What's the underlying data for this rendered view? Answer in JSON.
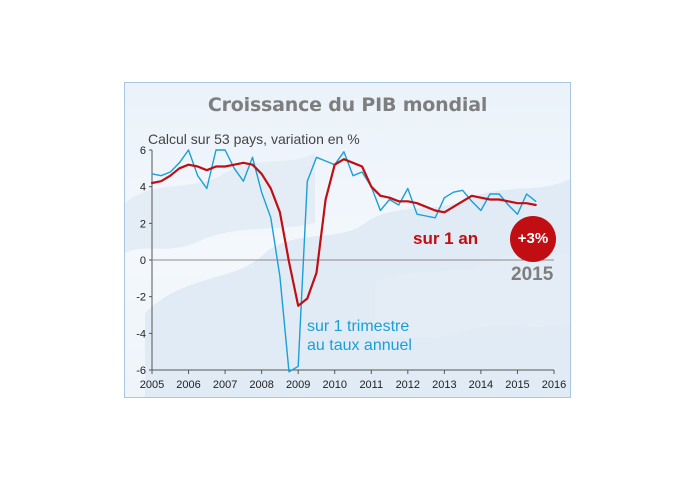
{
  "chart_data": {
    "type": "line",
    "title": "Croissance du PIB mondial",
    "subtitle": "Calcul sur 53 pays, variation en %",
    "xlim": [
      2005,
      2016
    ],
    "ylim": [
      -6,
      6
    ],
    "x_ticks": [
      "2005",
      "2006",
      "2007",
      "2008",
      "2009",
      "2010",
      "2011",
      "2012",
      "2013",
      "2014",
      "2015",
      "2016"
    ],
    "y_ticks": [
      "6",
      "4",
      "2",
      "0",
      "-2",
      "-4",
      "-6"
    ],
    "grid": false,
    "series": [
      {
        "name": "sur 1 an",
        "color": "#c00e12",
        "x": [
          2005.0,
          2005.25,
          2005.5,
          2005.75,
          2006.0,
          2006.25,
          2006.5,
          2006.75,
          2007.0,
          2007.25,
          2007.5,
          2007.75,
          2008.0,
          2008.25,
          2008.5,
          2008.75,
          2009.0,
          2009.25,
          2009.5,
          2009.75,
          2010.0,
          2010.25,
          2010.5,
          2010.75,
          2011.0,
          2011.25,
          2011.5,
          2011.75,
          2012.0,
          2012.25,
          2012.5,
          2012.75,
          2013.0,
          2013.25,
          2013.5,
          2013.75,
          2014.0,
          2014.25,
          2014.5,
          2014.75,
          2015.0,
          2015.25,
          2015.5
        ],
        "values": [
          4.2,
          4.3,
          4.6,
          5.0,
          5.2,
          5.1,
          4.9,
          5.1,
          5.1,
          5.2,
          5.3,
          5.2,
          4.7,
          3.9,
          2.6,
          -0.1,
          -2.5,
          -2.1,
          -0.7,
          3.3,
          5.2,
          5.5,
          5.3,
          5.1,
          4.0,
          3.5,
          3.4,
          3.2,
          3.2,
          3.1,
          2.9,
          2.7,
          2.6,
          2.9,
          3.2,
          3.5,
          3.4,
          3.3,
          3.3,
          3.2,
          3.1,
          3.1,
          3.0
        ]
      },
      {
        "name": "sur 1 trimestre au taux annuel",
        "color": "#1a9fd6",
        "x": [
          2005.0,
          2005.25,
          2005.5,
          2005.75,
          2006.0,
          2006.25,
          2006.5,
          2006.75,
          2007.0,
          2007.25,
          2007.5,
          2007.75,
          2008.0,
          2008.25,
          2008.5,
          2008.75,
          2009.0,
          2009.25,
          2009.5,
          2009.75,
          2010.0,
          2010.25,
          2010.5,
          2010.75,
          2011.0,
          2011.25,
          2011.5,
          2011.75,
          2012.0,
          2012.25,
          2012.5,
          2012.75,
          2013.0,
          2013.25,
          2013.5,
          2013.75,
          2014.0,
          2014.25,
          2014.5,
          2014.75,
          2015.0,
          2015.25,
          2015.5
        ],
        "values": [
          4.7,
          4.6,
          4.8,
          5.3,
          6.0,
          4.6,
          3.9,
          6.0,
          6.0,
          5.0,
          4.3,
          5.6,
          3.7,
          2.3,
          -0.9,
          -6.1,
          -5.8,
          4.3,
          5.6,
          5.4,
          5.2,
          5.9,
          4.6,
          4.8,
          4.0,
          2.7,
          3.3,
          3.0,
          3.9,
          2.5,
          2.4,
          2.3,
          3.4,
          3.7,
          3.8,
          3.2,
          2.7,
          3.6,
          3.6,
          3.0,
          2.5,
          3.6,
          3.2
        ]
      }
    ],
    "annotations": {
      "red_label": "sur 1 an",
      "badge": "+3%",
      "year": "2015",
      "blue_line1": "sur 1 trimestre",
      "blue_line2": "au taux annuel"
    }
  }
}
